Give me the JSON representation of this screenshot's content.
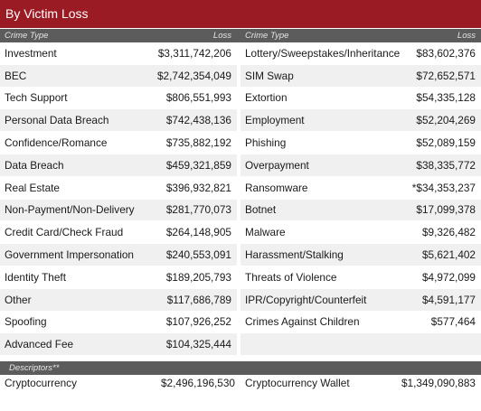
{
  "title": "By Victim Loss",
  "headers": {
    "left_type": "Crime Type",
    "left_loss": "Loss",
    "right_type": "Crime Type",
    "right_loss": "Loss"
  },
  "left_rows": [
    {
      "type": "Investment",
      "loss": "$3,311,742,206"
    },
    {
      "type": "BEC",
      "loss": "$2,742,354,049"
    },
    {
      "type": "Tech Support",
      "loss": "$806,551,993"
    },
    {
      "type": "Personal Data Breach",
      "loss": "$742,438,136"
    },
    {
      "type": "Confidence/Romance",
      "loss": "$735,882,192"
    },
    {
      "type": "Data Breach",
      "loss": "$459,321,859"
    },
    {
      "type": "Real Estate",
      "loss": "$396,932,821"
    },
    {
      "type": "Non-Payment/Non-Delivery",
      "loss": "$281,770,073"
    },
    {
      "type": "Credit Card/Check Fraud",
      "loss": "$264,148,905"
    },
    {
      "type": "Government Impersonation",
      "loss": "$240,553,091"
    },
    {
      "type": "Identity Theft",
      "loss": "$189,205,793"
    },
    {
      "type": "Other",
      "loss": "$117,686,789"
    },
    {
      "type": "Spoofing",
      "loss": "$107,926,252"
    },
    {
      "type": "Advanced Fee",
      "loss": "$104,325,444"
    }
  ],
  "right_rows": [
    {
      "type": "Lottery/Sweepstakes/Inheritance",
      "loss": "$83,602,376"
    },
    {
      "type": "SIM Swap",
      "loss": "$72,652,571"
    },
    {
      "type": "Extortion",
      "loss": "$54,335,128"
    },
    {
      "type": "Employment",
      "loss": "$52,204,269"
    },
    {
      "type": "Phishing",
      "loss": "$52,089,159"
    },
    {
      "type": "Overpayment",
      "loss": "$38,335,772"
    },
    {
      "type": "Ransomware",
      "loss": "*$34,353,237"
    },
    {
      "type": "Botnet",
      "loss": "$17,099,378"
    },
    {
      "type": "Malware",
      "loss": "$9,326,482"
    },
    {
      "type": "Harassment/Stalking",
      "loss": "$5,621,402"
    },
    {
      "type": "Threats of Violence",
      "loss": "$4,972,099"
    },
    {
      "type": "IPR/Copyright/Counterfeit",
      "loss": "$4,591,177"
    },
    {
      "type": "Crimes Against Children",
      "loss": "$577,464"
    },
    {
      "type": "",
      "loss": ""
    }
  ],
  "descriptors": {
    "header": "Descriptors**",
    "left": {
      "type": "Cryptocurrency",
      "loss": "$2,496,196,530"
    },
    "right": {
      "type": "Cryptocurrency Wallet",
      "loss": "$1,349,090,883"
    }
  },
  "colors": {
    "title_bg": "#9b1b25",
    "header_bg": "#5c5c5c",
    "stripe": "#f0f0f0"
  }
}
